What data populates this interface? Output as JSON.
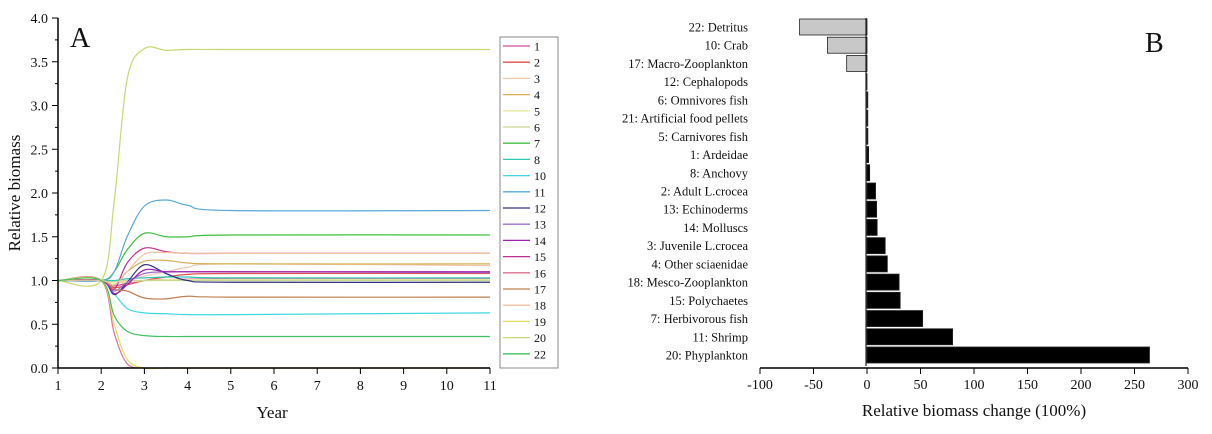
{
  "chart_data": [
    {
      "type": "line",
      "panel_label": "A",
      "xlabel": "Year",
      "ylabel": "Relative biomass",
      "xlim": [
        1,
        11
      ],
      "ylim": [
        0,
        4.0
      ],
      "x_ticks": [
        "1",
        "2",
        "3",
        "4",
        "5",
        "6",
        "7",
        "8",
        "9",
        "10",
        "11"
      ],
      "y_ticks": [
        "0.0",
        "0.5",
        "1.0",
        "1.5",
        "2.0",
        "2.5",
        "3.0",
        "3.5",
        "4.0"
      ],
      "grid": false,
      "legend_placement": "right",
      "x": [
        1,
        2,
        2.3,
        2.6,
        3,
        3.5,
        4,
        5,
        11
      ],
      "series": [
        {
          "name": "1",
          "color": "#d04ca0",
          "values": [
            1,
            1,
            0.94,
            0.97,
            1.0,
            1.01,
            1.015,
            1.015,
            1.015
          ]
        },
        {
          "name": "2",
          "color": "#e05050",
          "values": [
            1,
            1,
            0.92,
            0.95,
            1.0,
            1.04,
            1.07,
            1.08,
            1.08
          ]
        },
        {
          "name": "3",
          "color": "#f0c8b0",
          "values": [
            1,
            1,
            0.97,
            1.0,
            1.05,
            1.1,
            1.15,
            1.19,
            1.17
          ]
        },
        {
          "name": "4",
          "color": "#d8b050",
          "values": [
            1,
            1,
            0.95,
            1.1,
            1.22,
            1.23,
            1.2,
            1.19,
            1.19
          ]
        },
        {
          "name": "5",
          "color": "#e8e8a0",
          "values": [
            1,
            1,
            0.97,
            0.98,
            1.0,
            1.01,
            1.01,
            1.01,
            1.01
          ]
        },
        {
          "name": "6",
          "color": "#c8d890",
          "values": [
            1,
            1,
            0.99,
            1.0,
            1.0,
            1.0,
            1.0,
            1.0,
            1.0
          ]
        },
        {
          "name": "7",
          "color": "#40c040",
          "values": [
            1,
            1,
            1.1,
            1.35,
            1.54,
            1.5,
            1.5,
            1.52,
            1.52
          ]
        },
        {
          "name": "8",
          "color": "#30c8b0",
          "values": [
            1,
            1,
            1.0,
            1.02,
            1.03,
            1.04,
            1.04,
            1.03,
            1.03
          ]
        },
        {
          "name": "10",
          "color": "#40d8e0",
          "values": [
            1,
            1,
            0.85,
            0.68,
            0.63,
            0.62,
            0.61,
            0.61,
            0.63
          ]
        },
        {
          "name": "11",
          "color": "#5aa8d8",
          "values": [
            1,
            1,
            1.1,
            1.5,
            1.85,
            1.92,
            1.86,
            1.8,
            1.8
          ]
        },
        {
          "name": "12",
          "color": "#303080",
          "values": [
            1,
            1,
            0.84,
            0.98,
            1.18,
            1.08,
            1.0,
            0.98,
            0.98
          ]
        },
        {
          "name": "13",
          "color": "#a070d0",
          "values": [
            1,
            1,
            0.88,
            0.98,
            1.08,
            1.1,
            1.1,
            1.1,
            1.09
          ]
        },
        {
          "name": "14",
          "color": "#a020b0",
          "values": [
            1,
            1,
            0.85,
            0.95,
            1.12,
            1.1,
            1.1,
            1.1,
            1.1
          ]
        },
        {
          "name": "15",
          "color": "#c03090",
          "values": [
            1,
            1,
            0.9,
            1.2,
            1.37,
            1.33,
            1.31,
            1.31,
            1.31
          ]
        },
        {
          "name": "16",
          "color": "#e07090",
          "values": [
            1,
            1,
            0.4,
            0.05,
            0,
            0,
            0,
            0,
            0
          ]
        },
        {
          "name": "17",
          "color": "#c08050",
          "values": [
            1,
            1,
            0.9,
            0.88,
            0.8,
            0.79,
            0.82,
            0.81,
            0.81
          ]
        },
        {
          "name": "18",
          "color": "#f0c0a0",
          "values": [
            1,
            1,
            0.95,
            1.1,
            1.3,
            1.32,
            1.31,
            1.31,
            1.31
          ]
        },
        {
          "name": "19",
          "color": "#e0e060",
          "values": [
            1,
            1,
            0.5,
            0.1,
            0,
            0,
            0,
            0,
            0
          ]
        },
        {
          "name": "20",
          "color": "#c8d870",
          "values": [
            1,
            1,
            1.9,
            3.3,
            3.65,
            3.63,
            3.64,
            3.64,
            3.64
          ]
        },
        {
          "name": "22",
          "color": "#40c060",
          "values": [
            1,
            1,
            0.6,
            0.42,
            0.37,
            0.36,
            0.36,
            0.36,
            0.36
          ]
        }
      ]
    },
    {
      "type": "bar",
      "orientation": "horizontal",
      "panel_label": "B",
      "xlabel": "Relative biomass change (100%)",
      "xlim": [
        -100,
        300
      ],
      "x_ticks": [
        "-100",
        "-50",
        "0",
        "50",
        "100",
        "150",
        "200",
        "250",
        "300"
      ],
      "grid": false,
      "negative_color": "#c8c8c8",
      "positive_color": "#000000",
      "categories": [
        "22: Detritus",
        "10: Crab",
        "17: Macro-Zooplankton",
        "12: Cephalopods",
        "6: Omnivores fish",
        "21: Artificial food pellets",
        "5: Carnivores fish",
        "1: Ardeidae",
        "8: Anchovy",
        "2: Adult L.crocea",
        "13: Echinoderms",
        "14: Molluscs",
        "3: Juvenile L.crocea",
        "4: Other sciaenidae",
        "18: Mesco-Zooplankton",
        "15: Polychaetes",
        "7: Herbivorous fish",
        "11: Shrimp",
        "20: Phyplankton"
      ],
      "values": [
        -63,
        -37,
        -19,
        -1,
        0.3,
        0.5,
        0.8,
        1.5,
        2.5,
        8,
        9,
        9.5,
        17,
        19,
        30,
        31,
        52,
        80,
        264
      ]
    }
  ]
}
